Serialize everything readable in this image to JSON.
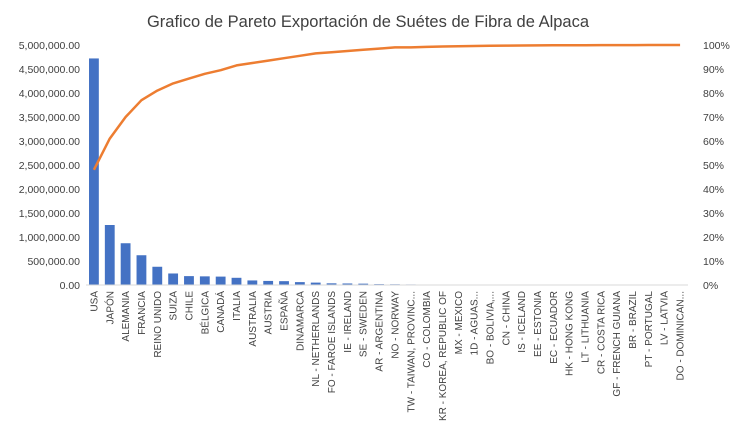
{
  "chart_data": {
    "type": "bar",
    "title": "Grafico de Pareto Exportación de Suétes de Fibra de Alpaca",
    "xlabel": "",
    "ylabel": "",
    "ylim": [
      0,
      5000000
    ],
    "y2lim": [
      0,
      100
    ],
    "y_ticks": [
      "0.00",
      "500,000.00",
      "1,000,000.00",
      "1,500,000.00",
      "2,000,000.00",
      "2,500,000.00",
      "3,000,000.00",
      "3,500,000.00",
      "4,000,000.00",
      "4,500,000.00",
      "5,000,000.00"
    ],
    "y2_ticks": [
      "0%",
      "10%",
      "20%",
      "30%",
      "40%",
      "50%",
      "60%",
      "70%",
      "80%",
      "90%",
      "100%"
    ],
    "grid": false,
    "legend": "none",
    "categories": [
      "USA",
      "JAPÓN",
      "ALEMANIA",
      "FRANCIA",
      "REINO UNIDO",
      "SUIZA",
      "CHILE",
      "BÉLGICA",
      "CANADÁ",
      "ITALIA",
      "AUSTRALIA",
      "AUSTRIA",
      "ESPAÑA",
      "DINAMARCA",
      "NL - NETHERLANDS",
      "FO - FAROE ISLANDS",
      "IE - IRELAND",
      "SE - SWEDEN",
      "AR - ARGENTINA",
      "NO - NORWAY",
      "TW - TAIWAN, PROVINC...",
      "CO - COLOMBIA",
      "KR - KOREA, REPUBLIC OF",
      "MX - MEXICO",
      "1D - AGUAS...",
      "BO - BOLIVIA,...",
      "CN - CHINA",
      "IS - ICELAND",
      "EE - ESTONIA",
      "EC - ECUADOR",
      "HK - HONG KONG",
      "LT - LITHUANIA",
      "CR - COSTA RICA",
      "GF - FRENCH GUIANA",
      "BR - BRAZIL",
      "PT - PORTUGAL",
      "LV - LATVIA",
      "DO - DOMINICAN..."
    ],
    "series": [
      {
        "type": "bar",
        "values": [
          4720000,
          1250000,
          870000,
          620000,
          380000,
          240000,
          185000,
          180000,
          175000,
          150000,
          95000,
          85000,
          80000,
          60000,
          50000,
          35000,
          32000,
          28000,
          18000,
          15000,
          12000,
          10000,
          9000,
          8000,
          7000,
          6000,
          5000,
          4500,
          4000,
          3500,
          3000,
          2500,
          2000,
          1800,
          1500,
          1200,
          1000,
          800
        ]
      },
      {
        "type": "line",
        "axis": "secondary",
        "values": [
          48,
          61,
          70,
          77,
          81,
          84,
          86,
          88,
          89.5,
          91.5,
          92.5,
          93.5,
          94.5,
          95.5,
          96.5,
          97,
          97.5,
          98,
          98.5,
          99,
          99,
          99.2,
          99.4,
          99.5,
          99.6,
          99.7,
          99.75,
          99.8,
          99.85,
          99.88,
          99.9,
          99.92,
          99.94,
          99.96,
          99.97,
          99.98,
          99.99,
          100
        ]
      }
    ],
    "colors": {
      "bar": "#4472C4",
      "line": "#ED7D31",
      "axis": "#D9D9D9",
      "text": "#404040"
    }
  }
}
